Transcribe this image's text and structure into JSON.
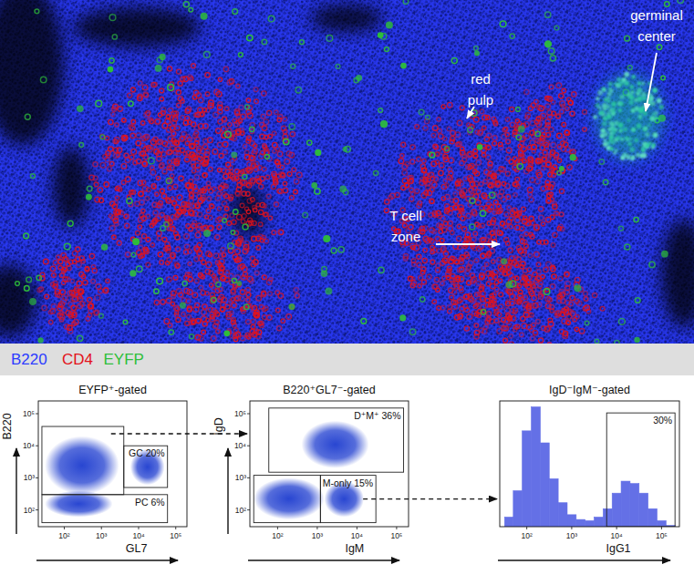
{
  "image": {
    "annotations": [
      {
        "lines": [
          "red",
          "pulp"
        ]
      },
      {
        "lines": [
          "germinal",
          "center"
        ]
      },
      {
        "lines": [
          "T cell",
          "zone"
        ]
      }
    ]
  },
  "legend": [
    {
      "text": "B220",
      "color": "#2b3bff"
    },
    {
      "text": "CD4",
      "color": "#e3121b"
    },
    {
      "text": "EYFP",
      "color": "#2fbf3a"
    }
  ],
  "chart_data": [
    {
      "type": "scatter",
      "title": "EYFP⁺-gated",
      "x_label": "GL7",
      "y_label": "B220",
      "log": true,
      "color": "#1d3ccf",
      "xlim": [
        20,
        200000
      ],
      "ylim": [
        30,
        250000
      ],
      "xticks": [
        {
          "value": 100,
          "label": "10²"
        },
        {
          "value": 1000,
          "label": "10³"
        },
        {
          "value": 10000,
          "label": "10⁴"
        },
        {
          "value": 100000,
          "label": "10⁵"
        }
      ],
      "yticks": [
        {
          "value": 100,
          "label": "10²"
        },
        {
          "value": 1000,
          "label": "10³"
        },
        {
          "value": 10000,
          "label": "10⁴"
        },
        {
          "value": 100000,
          "label": "10⁵"
        }
      ],
      "populations": [
        {
          "x_range": [
            30,
            3000
          ],
          "y_range": [
            300,
            20000
          ]
        },
        {
          "x_range": [
            6000,
            50000
          ],
          "y_range": [
            600,
            8000
          ]
        },
        {
          "x_range": [
            30,
            2000
          ],
          "y_range": [
            60,
            400
          ]
        }
      ],
      "gates": [
        {
          "x_range": [
            25,
            4000
          ],
          "y_range": [
            300,
            40000
          ]
        },
        {
          "label": "GC 20%",
          "x_range": [
            4000,
            60000
          ],
          "y_range": [
            500,
            10000
          ]
        },
        {
          "label": "PC 6%",
          "x_range": [
            25,
            60000
          ],
          "y_range": [
            40,
            300
          ]
        }
      ]
    },
    {
      "type": "scatter",
      "title": "B220⁺GL7⁻-gated",
      "x_label": "IgM",
      "y_label": "IgD",
      "log": true,
      "color": "#1d3ccf",
      "xlim": [
        20,
        200000
      ],
      "ylim": [
        30,
        250000
      ],
      "xticks": [
        {
          "value": 100,
          "label": "10²"
        },
        {
          "value": 1000,
          "label": "10³"
        },
        {
          "value": 10000,
          "label": "10⁴"
        },
        {
          "value": 100000,
          "label": "10⁵"
        }
      ],
      "yticks": [
        {
          "value": 100,
          "label": "10²"
        },
        {
          "value": 1000,
          "label": "10³"
        },
        {
          "value": 10000,
          "label": "10⁴"
        },
        {
          "value": 100000,
          "label": "10⁵"
        }
      ],
      "populations": [
        {
          "x_range": [
            400,
            20000
          ],
          "y_range": [
            2000,
            60000
          ]
        },
        {
          "x_range": [
            25,
            1500
          ],
          "y_range": [
            50,
            1000
          ]
        },
        {
          "x_range": [
            1500,
            15000
          ],
          "y_range": [
            60,
            800
          ]
        }
      ],
      "gates": [
        {
          "label": "D⁺M⁺ 36%",
          "x_range": [
            60,
            150000
          ],
          "y_range": [
            1500,
            150000
          ]
        },
        {
          "x_range": [
            25,
            1200
          ],
          "y_range": [
            40,
            1200
          ]
        },
        {
          "label": "M-only 15%",
          "x_range": [
            1200,
            30000
          ],
          "y_range": [
            40,
            1200
          ]
        }
      ]
    },
    {
      "type": "histogram",
      "title": "IgD⁻IgM⁻-gated",
      "x_label": "IgG1",
      "log": "x",
      "tick_labels": "x",
      "color": "#6470e6",
      "xlim": [
        25,
        250000
      ],
      "ylim": [
        0,
        105
      ],
      "xticks": [
        {
          "value": 100,
          "label": "10²"
        },
        {
          "value": 1000,
          "label": "10³"
        },
        {
          "value": 10000,
          "label": "10⁴"
        },
        {
          "value": 100000,
          "label": "10⁵"
        }
      ],
      "bins": [
        32,
        50,
        79,
        126,
        200,
        316,
        501,
        794,
        1259,
        1995,
        3162,
        5012,
        7943,
        12589,
        19953,
        31623,
        50119,
        79433,
        125893,
        199526
      ],
      "counts": [
        8,
        30,
        80,
        100,
        70,
        40,
        20,
        10,
        6,
        5,
        8,
        15,
        28,
        38,
        36,
        28,
        15,
        5,
        1
      ],
      "gates": [
        {
          "label": "30%",
          "x_range": [
            6000,
            199526
          ],
          "y_range": [
            0,
            95
          ]
        }
      ]
    }
  ]
}
